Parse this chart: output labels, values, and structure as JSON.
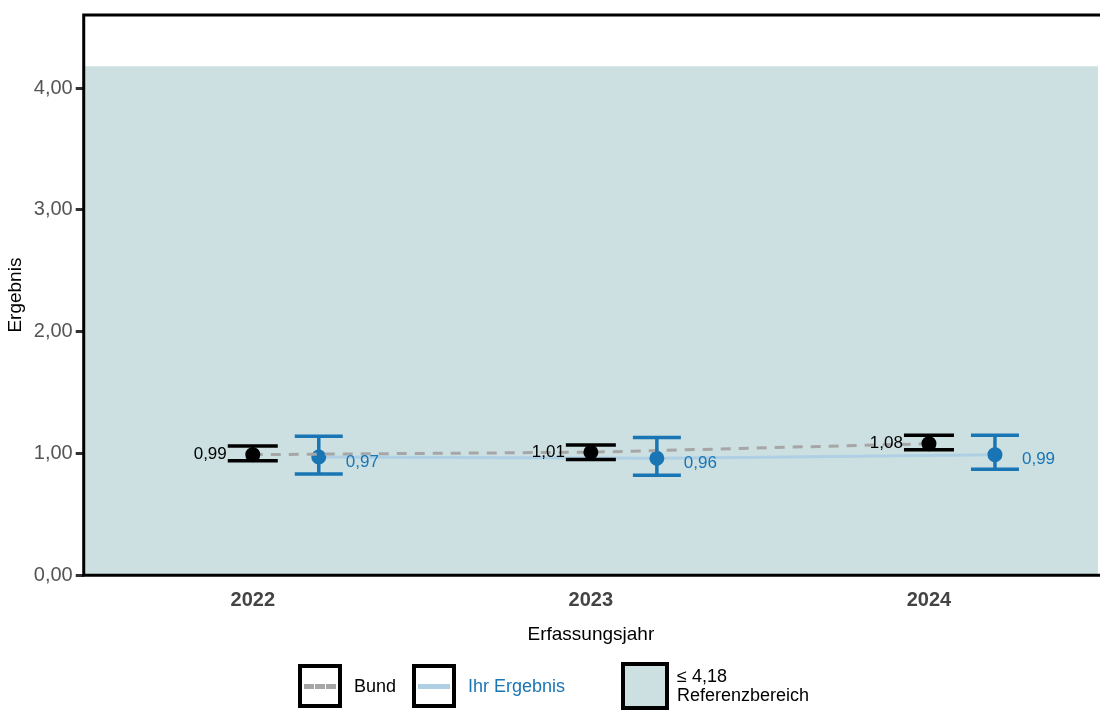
{
  "chart_data": {
    "type": "line",
    "xlabel": "Erfassungsjahr",
    "ylabel": "Ergebnis",
    "categories": [
      "2022",
      "2023",
      "2024"
    ],
    "series": [
      {
        "name": "Bund",
        "color": "#000000",
        "line_style": "dashed",
        "values": [
          0.99,
          1.01,
          1.08
        ],
        "value_labels": [
          "0,99",
          "1,01",
          "1,08"
        ],
        "errors": [
          [
            0.94,
            1.06
          ],
          [
            0.95,
            1.07
          ],
          [
            1.03,
            1.15
          ]
        ]
      },
      {
        "name": "Ihr Ergebnis",
        "color": "#1a75b5",
        "line_style": "solid",
        "values": [
          0.97,
          0.96,
          0.99
        ],
        "value_labels": [
          "0,97",
          "0,96",
          "0,99"
        ],
        "errors": [
          [
            0.83,
            1.14
          ],
          [
            0.82,
            1.13
          ],
          [
            0.87,
            1.15
          ]
        ]
      }
    ],
    "ylim": [
      0,
      4.6
    ],
    "yticks": [
      {
        "value": 0,
        "label": "0,00"
      },
      {
        "value": 1,
        "label": "1,00"
      },
      {
        "value": 2,
        "label": "2,00"
      },
      {
        "value": 3,
        "label": "3,00"
      },
      {
        "value": 4,
        "label": "4,00"
      }
    ],
    "bands": [
      {
        "axis": "y",
        "from": 0,
        "to": 4.18,
        "label": "≤ 4,18\nReferenzbereich",
        "color": "#cce0e1"
      }
    ],
    "marker": "circle",
    "grid": false,
    "legend": "bottom"
  }
}
